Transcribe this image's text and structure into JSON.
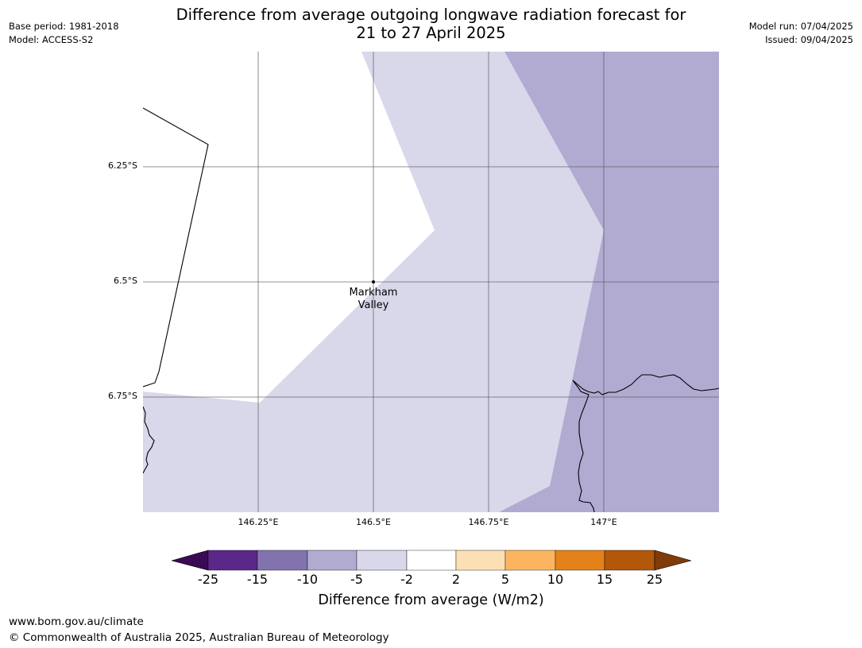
{
  "header": {
    "base_period": "Base period: 1981-2018",
    "model": "Model: ACCESS-S2",
    "model_run": "Model run: 07/04/2025",
    "issued": "Issued: 09/04/2025",
    "title_line1": "Difference from average outgoing longwave radiation forecast for",
    "title_line2": "21 to 27 April 2025"
  },
  "map": {
    "place_label_line1": "Markham",
    "place_label_line2": "Valley",
    "lat_labels": [
      "6.25°S",
      "6.5°S",
      "6.75°S"
    ],
    "lon_labels": [
      "146.25°E",
      "146.5°E",
      "146.75°E",
      "147°E"
    ],
    "colors": {
      "neutral": "#ffffff",
      "minus5_to_minus2": "#d8d8ea",
      "minus10_to_minus5": "#b1abd2",
      "coastline": "#000000",
      "gridline": "#555555"
    }
  },
  "colorbar": {
    "title": "Difference from average (W/m2)",
    "ticks": [
      "-25",
      "-15",
      "-10",
      "-5",
      "-2",
      "2",
      "5",
      "10",
      "15",
      "25"
    ],
    "colors": [
      "#3b0a55",
      "#5b2889",
      "#8273ae",
      "#b1abd2",
      "#d8d8ea",
      "#ffffff",
      "#fddfb4",
      "#fbb561",
      "#e3821a",
      "#b3570a",
      "#7f3b08"
    ]
  },
  "footer": {
    "url": "www.bom.gov.au/climate",
    "copyright": "© Commonwealth of Australia 2025, Australian Bureau of Meteorology"
  }
}
